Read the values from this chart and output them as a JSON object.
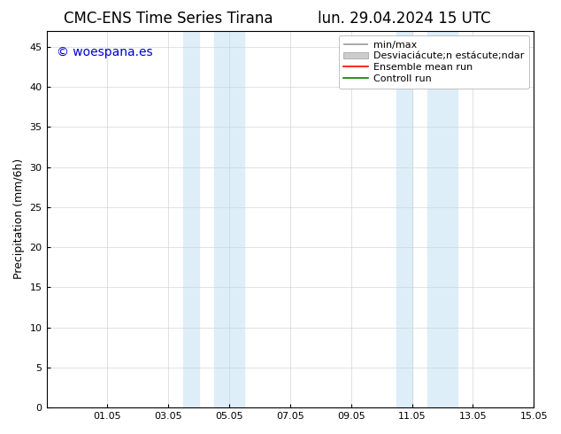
{
  "title_left": "CMC-ENS Time Series Tirana",
  "title_right": "lun. 29.04.2024 15 UTC",
  "ylabel": "Precipitation (mm/6h)",
  "ylim": [
    0,
    47
  ],
  "yticks": [
    0,
    5,
    10,
    15,
    20,
    25,
    30,
    35,
    40,
    45
  ],
  "xtick_labels": [
    "01.05",
    "03.05",
    "05.05",
    "07.05",
    "09.05",
    "11.05",
    "13.05",
    "15.05"
  ],
  "xtick_days_from_apr29": [
    2,
    4,
    6,
    8,
    10,
    12,
    14,
    16
  ],
  "xlim": [
    0,
    16
  ],
  "shaded_regions": [
    [
      4.5,
      5.0
    ],
    [
      5.5,
      6.5
    ],
    [
      11.5,
      12.0
    ],
    [
      12.5,
      13.5
    ]
  ],
  "shaded_color": "#ddeef8",
  "watermark_text": "© woespana.es",
  "watermark_color": "#0000cc",
  "background_color": "#ffffff",
  "legend_min_max_color": "#999999",
  "legend_band_color": "#cccccc",
  "legend_ensemble_color": "#ff0000",
  "legend_control_color": "#008000",
  "grid_color": "#cccccc",
  "axis_color": "#000000",
  "font_size_title": 12,
  "font_size_ylabel": 9,
  "font_size_ticks": 8,
  "font_size_legend": 8,
  "font_size_watermark": 10
}
